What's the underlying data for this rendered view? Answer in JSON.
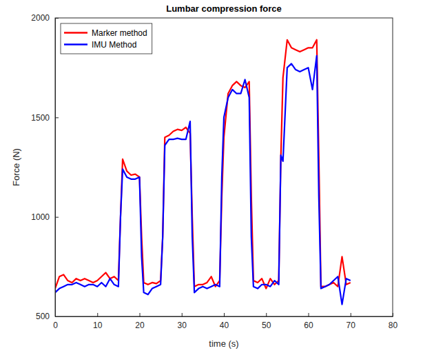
{
  "chart_data": {
    "type": "line",
    "title": "Lumbar compression force",
    "x_label": "time (s)",
    "y_label": "Force (N)",
    "x": [
      0,
      1,
      2,
      3,
      4,
      5,
      6,
      7,
      8,
      9,
      10,
      11,
      12,
      13,
      14,
      15,
      15.5,
      16,
      17,
      18,
      19,
      20,
      20.5,
      21,
      22,
      23,
      24,
      25,
      25.5,
      26,
      27,
      28,
      29,
      30,
      31,
      32,
      32.5,
      33,
      34,
      35,
      36,
      37,
      38,
      39,
      39.5,
      40,
      41,
      42,
      43,
      44,
      45,
      46,
      46.5,
      47,
      48,
      49,
      50,
      51,
      52,
      53,
      53.5,
      54,
      55,
      56,
      57,
      58,
      59,
      60,
      61,
      62,
      62.5,
      63,
      64,
      65,
      66,
      67,
      68,
      69,
      70
    ],
    "series": [
      {
        "name": "Marker method",
        "color": "#ff0000",
        "line_style": "solid",
        "values": [
          640,
          700,
          710,
          680,
          670,
          690,
          680,
          690,
          680,
          670,
          680,
          700,
          720,
          690,
          700,
          680,
          1000,
          1290,
          1230,
          1210,
          1215,
          1200,
          900,
          670,
          660,
          670,
          665,
          680,
          900,
          1400,
          1410,
          1430,
          1440,
          1435,
          1450,
          1420,
          1000,
          650,
          660,
          660,
          670,
          700,
          650,
          680,
          1100,
          1400,
          1620,
          1660,
          1680,
          1660,
          1650,
          1680,
          1100,
          680,
          670,
          690,
          640,
          690,
          660,
          680,
          1300,
          1700,
          1890,
          1850,
          1840,
          1830,
          1840,
          1850,
          1850,
          1890,
          1300,
          650,
          650,
          660,
          670,
          650,
          800,
          660,
          670
        ]
      },
      {
        "name": "IMU Method",
        "color": "#0000ff",
        "line_style": "solid",
        "values": [
          620,
          640,
          650,
          660,
          660,
          670,
          660,
          650,
          660,
          660,
          650,
          670,
          650,
          690,
          660,
          650,
          1000,
          1240,
          1200,
          1190,
          1190,
          1200,
          800,
          620,
          610,
          640,
          650,
          660,
          900,
          1360,
          1390,
          1390,
          1395,
          1390,
          1390,
          1480,
          900,
          620,
          640,
          650,
          640,
          650,
          660,
          650,
          1200,
          1500,
          1600,
          1640,
          1620,
          1620,
          1690,
          1600,
          900,
          650,
          640,
          660,
          660,
          650,
          680,
          660,
          1310,
          1280,
          1750,
          1770,
          1740,
          1730,
          1740,
          1750,
          1640,
          1810,
          1100,
          640,
          650,
          660,
          680,
          700,
          560,
          690,
          680
        ]
      }
    ],
    "xlim": [
      0,
      80
    ],
    "xticks": [
      0,
      10,
      20,
      30,
      40,
      50,
      60,
      70,
      80
    ],
    "ylim": [
      500,
      2000
    ],
    "yticks": [
      500,
      1000,
      1500,
      2000
    ],
    "grid": false,
    "legend": "upper left"
  }
}
